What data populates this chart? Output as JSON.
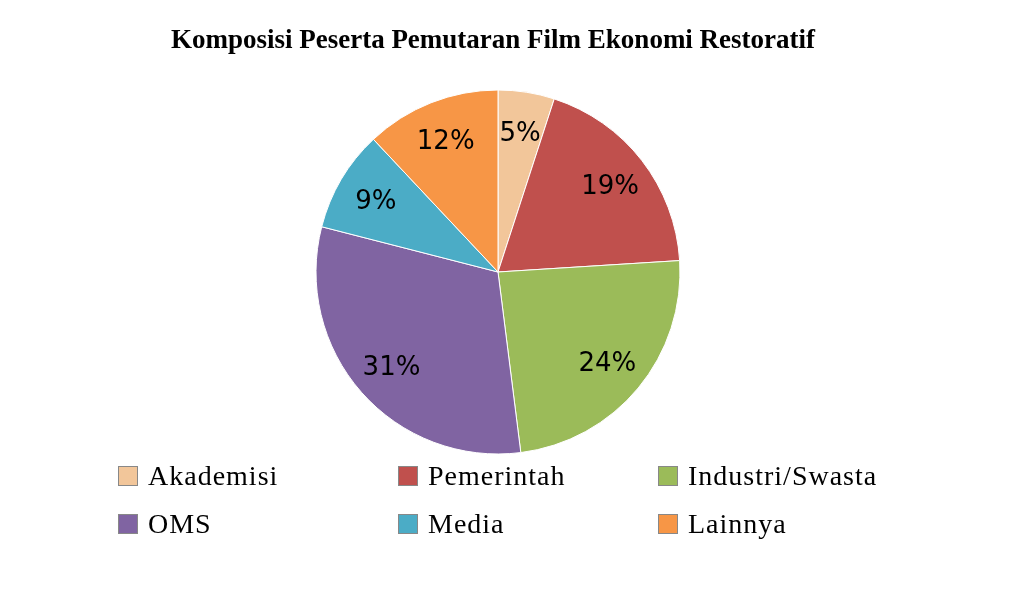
{
  "chart_data": {
    "type": "pie",
    "title": "Komposisi Peserta Pemutaran Film Ekonomi Restoratif",
    "categories": [
      "Akademisi",
      "Pemerintah",
      "Industri/Swasta",
      "OMS",
      "Media",
      "Lainnya"
    ],
    "values": [
      5,
      19,
      24,
      31,
      9,
      12
    ],
    "value_labels": [
      "5%",
      "19%",
      "24%",
      "31%",
      "9%",
      "12%"
    ],
    "colors": [
      "#f2c69a",
      "#c0504d",
      "#9bbb59",
      "#8064a2",
      "#4bacc6",
      "#f79646"
    ],
    "legend": "bottom"
  }
}
